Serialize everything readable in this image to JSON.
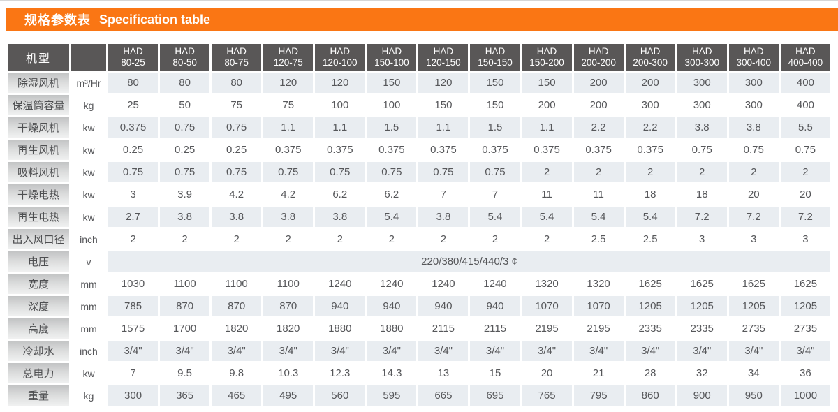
{
  "header": {
    "title_zh": "规格参数表",
    "title_en": "Specification table"
  },
  "colors": {
    "accent": "#fa7614",
    "header_bg": "#595757",
    "row_shade": "#e9edf1"
  },
  "table": {
    "corner_label": "机型",
    "model_series": "HAD",
    "model_codes": [
      "80-25",
      "80-50",
      "80-75",
      "120-75",
      "120-100",
      "150-100",
      "120-150",
      "150-150",
      "150-200",
      "200-200",
      "200-300",
      "300-300",
      "300-400",
      "400-400"
    ],
    "rows": [
      {
        "label": "除湿风机",
        "unit": "m³/Hr",
        "values": [
          "80",
          "80",
          "80",
          "120",
          "120",
          "150",
          "120",
          "150",
          "150",
          "200",
          "200",
          "300",
          "300",
          "400"
        ]
      },
      {
        "label": "保温筒容量",
        "unit": "kg",
        "values": [
          "25",
          "50",
          "75",
          "75",
          "100",
          "100",
          "150",
          "150",
          "200",
          "200",
          "300",
          "300",
          "300",
          "400"
        ]
      },
      {
        "label": "干燥风机",
        "unit": "kw",
        "values": [
          "0.375",
          "0.75",
          "0.75",
          "1.1",
          "1.1",
          "1.5",
          "1.1",
          "1.5",
          "1.1",
          "2.2",
          "2.2",
          "3.8",
          "3.8",
          "5.5"
        ]
      },
      {
        "label": "再生风机",
        "unit": "kw",
        "values": [
          "0.25",
          "0.25",
          "0.25",
          "0.375",
          "0.375",
          "0.375",
          "0.375",
          "0.375",
          "0.375",
          "0.375",
          "0.375",
          "0.75",
          "0.75",
          "0.75"
        ]
      },
      {
        "label": "吸料风机",
        "unit": "kw",
        "values": [
          "0.75",
          "0.75",
          "0.75",
          "0.75",
          "0.75",
          "0.75",
          "0.75",
          "0.75",
          "2",
          "2",
          "2",
          "2",
          "2",
          "2"
        ]
      },
      {
        "label": "干燥电热",
        "unit": "kw",
        "values": [
          "3",
          "3.9",
          "4.2",
          "4.2",
          "6.2",
          "6.2",
          "7",
          "7",
          "11",
          "11",
          "18",
          "18",
          "20",
          "20"
        ]
      },
      {
        "label": "再生电热",
        "unit": "kw",
        "values": [
          "2.7",
          "3.8",
          "3.8",
          "3.8",
          "3.8",
          "5.4",
          "3.8",
          "5.4",
          "5.4",
          "5.4",
          "5.4",
          "7.2",
          "7.2",
          "7.2"
        ]
      },
      {
        "label": "出入风口径",
        "unit": "inch",
        "values": [
          "2",
          "2",
          "2",
          "2",
          "2",
          "2",
          "2",
          "2",
          "2",
          "2.5",
          "2.5",
          "3",
          "3",
          "3"
        ]
      },
      {
        "label": "电压",
        "unit": "v",
        "span_value": "220/380/415/440/3 ¢"
      },
      {
        "label": "宽度",
        "unit": "mm",
        "values": [
          "1030",
          "1100",
          "1100",
          "1100",
          "1240",
          "1240",
          "1240",
          "1240",
          "1320",
          "1320",
          "1625",
          "1625",
          "1625",
          "1625"
        ]
      },
      {
        "label": "深度",
        "unit": "mm",
        "values": [
          "785",
          "870",
          "870",
          "870",
          "940",
          "940",
          "940",
          "940",
          "1070",
          "1070",
          "1205",
          "1205",
          "1205",
          "1205"
        ]
      },
      {
        "label": "高度",
        "unit": "mm",
        "values": [
          "1575",
          "1700",
          "1820",
          "1820",
          "1880",
          "1880",
          "2115",
          "2115",
          "2195",
          "2195",
          "2335",
          "2335",
          "2735",
          "2735"
        ]
      },
      {
        "label": "冷却水",
        "unit": "inch",
        "values": [
          "3/4\"",
          "3/4\"",
          "3/4\"",
          "3/4\"",
          "3/4\"",
          "3/4\"",
          "3/4\"",
          "3/4\"",
          "3/4\"",
          "3/4\"",
          "3/4\"",
          "3/4\"",
          "3/4\"",
          "3/4\""
        ]
      },
      {
        "label": "总电力",
        "unit": "kw",
        "values": [
          "7",
          "9.5",
          "9.8",
          "10.3",
          "12.3",
          "14.3",
          "13",
          "15",
          "20",
          "21",
          "28",
          "32",
          "34",
          "36"
        ]
      },
      {
        "label": "重量",
        "unit": "kg",
        "values": [
          "300",
          "365",
          "465",
          "495",
          "560",
          "595",
          "665",
          "695",
          "765",
          "795",
          "860",
          "900",
          "950",
          "1000"
        ]
      }
    ]
  }
}
